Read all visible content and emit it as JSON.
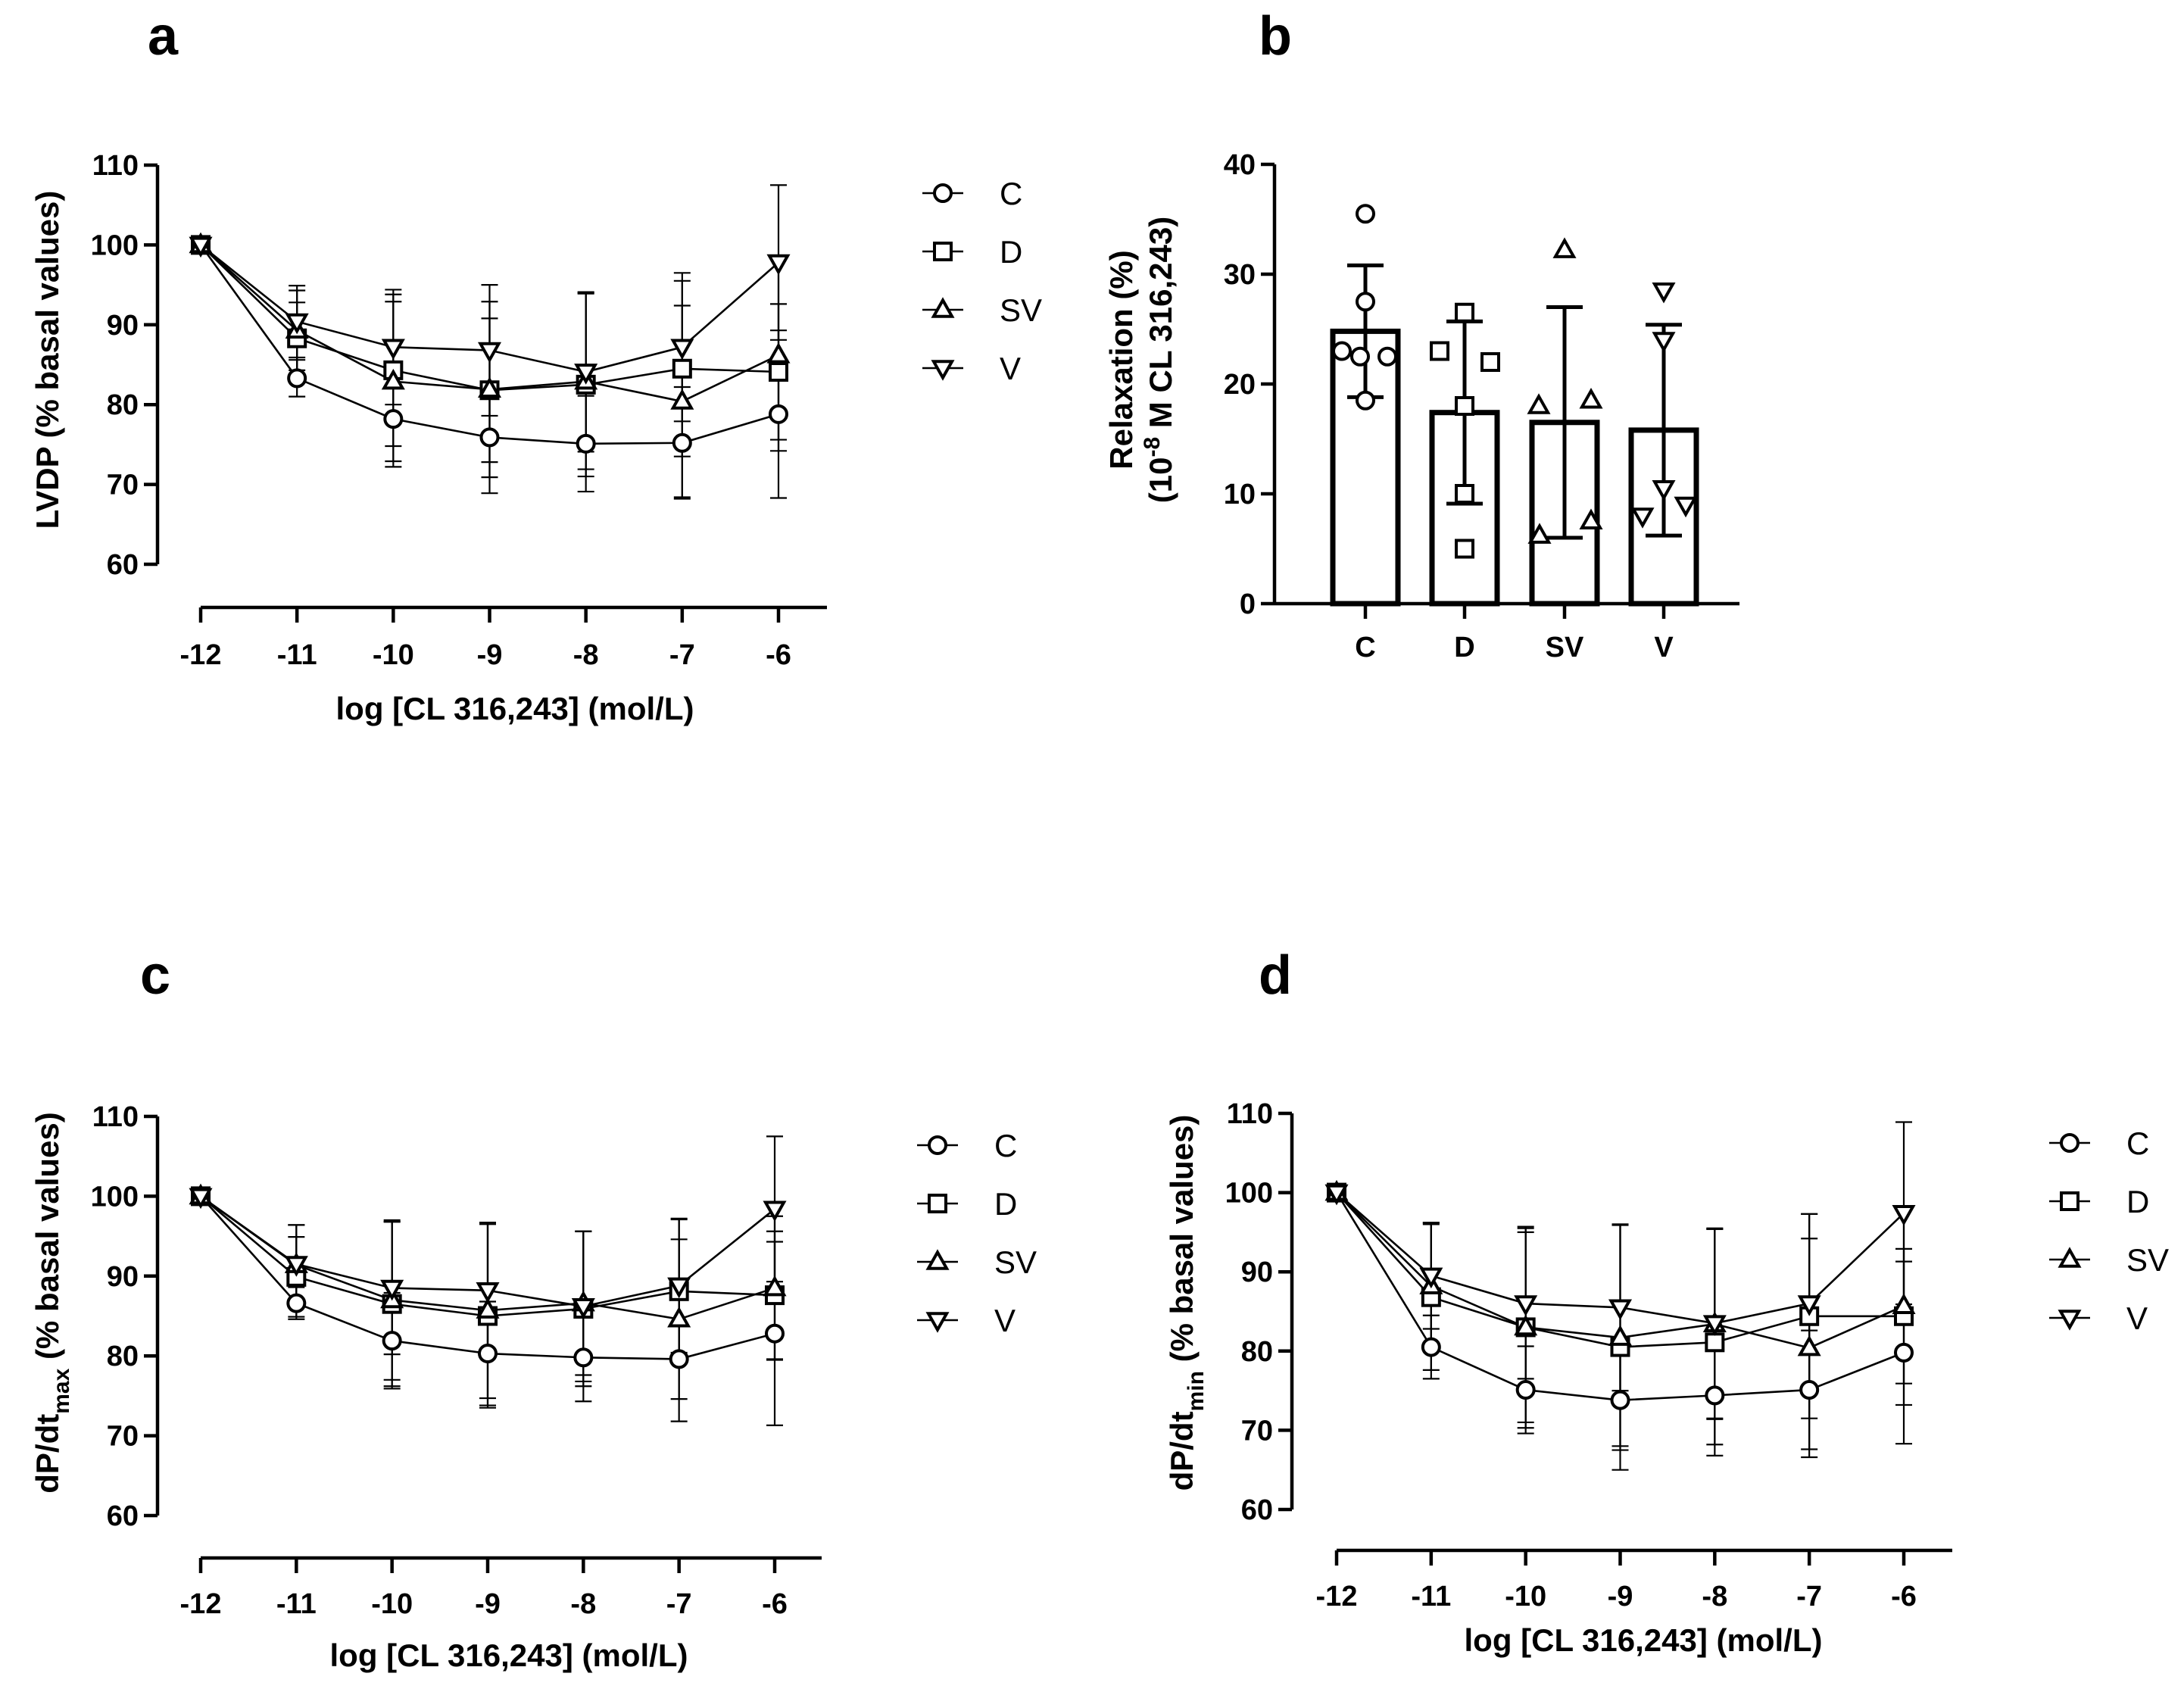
{
  "figure": {
    "panels": [
      "a",
      "b",
      "c",
      "d"
    ]
  },
  "chart_data": [
    {
      "panel": "a",
      "type": "line",
      "title": "",
      "xlabel": "log [CL 316,243] (mol/L)",
      "ylabel": "LVDP (% basal values)",
      "x": [
        -12,
        -11,
        -10,
        -9,
        -8,
        -7,
        -6
      ],
      "x_tick_labels": [
        "-12",
        "-11",
        "-10",
        "-9",
        "-8",
        "-7",
        "-6"
      ],
      "ylim": [
        60,
        110
      ],
      "y_ticks": [
        60,
        70,
        80,
        90,
        100,
        110
      ],
      "legend_position": "right",
      "series": [
        {
          "name": "C",
          "marker": "circle",
          "values": [
            100,
            83.3,
            78.2,
            75.9,
            75.1,
            75.2,
            78.8
          ],
          "err": [
            0,
            2.3,
            6,
            7,
            6,
            7,
            10.5
          ]
        },
        {
          "name": "D",
          "marker": "square",
          "values": [
            100,
            88.3,
            84.3,
            81.8,
            82.5,
            84.5,
            84.1
          ],
          "err": [
            0,
            4.5,
            9.5,
            9,
            11.5,
            11,
            8.5
          ]
        },
        {
          "name": "SV",
          "marker": "triangle-up",
          "values": [
            100,
            89.3,
            82.9,
            81.9,
            82.9,
            80.4,
            86.2
          ],
          "err": [
            0,
            5,
            10,
            11,
            11,
            12,
            12
          ]
        },
        {
          "name": "V",
          "marker": "triangle-down",
          "values": [
            100,
            90.4,
            87.2,
            86.8,
            84.1,
            87.2,
            97.8
          ],
          "err": [
            0,
            4.5,
            7.2,
            8.2,
            10,
            9.3,
            9.7
          ]
        }
      ]
    },
    {
      "panel": "b",
      "type": "bar",
      "title": "",
      "xlabel": "",
      "ylabel": "Relaxation (%)",
      "ylabel_line2": {
        "prefix": "(10",
        "superscript": "-8",
        "suffix": " M CL 316,243)"
      },
      "categories": [
        "C",
        "D",
        "SV",
        "V"
      ],
      "values": [
        24.8,
        17.4,
        16.5,
        15.8
      ],
      "err": [
        6,
        8.3,
        10.5,
        9.6
      ],
      "ylim": [
        0,
        40
      ],
      "y_ticks": [
        0,
        10,
        20,
        30,
        40
      ],
      "points": {
        "C": [
          35.5,
          27.5,
          23,
          22.5,
          22.5,
          18.5
        ],
        "D": [
          26.5,
          23,
          22,
          18,
          10,
          5
        ],
        "SV": [
          32.2,
          18,
          18.5,
          7.5,
          6.2
        ],
        "V": [
          28.5,
          24,
          10.5,
          9,
          8
        ]
      }
    },
    {
      "panel": "c",
      "type": "line",
      "title": "",
      "xlabel": "log [CL 316,243] (mol/L)",
      "ylabel": {
        "prefix": "dP/dt",
        "subscript": "max",
        "suffix": " (% basal values)"
      },
      "x": [
        -12,
        -11,
        -10,
        -9,
        -8,
        -7,
        -6
      ],
      "x_tick_labels": [
        "-12",
        "-11",
        "-10",
        "-9",
        "-8",
        "-7",
        "-6"
      ],
      "ylim": [
        60,
        110
      ],
      "y_ticks": [
        60,
        70,
        80,
        90,
        100,
        110
      ],
      "legend_position": "right",
      "series": [
        {
          "name": "C",
          "marker": "circle",
          "values": [
            100,
            86.6,
            81.9,
            80.3,
            79.8,
            79.6,
            82.8
          ],
          "err": [
            0,
            2,
            6,
            6.5,
            5.5,
            7.8,
            11.5
          ]
        },
        {
          "name": "D",
          "marker": "square",
          "values": [
            100,
            89.9,
            86.5,
            85,
            85.9,
            88.1,
            87.6
          ],
          "err": [
            0,
            5,
            10.3,
            11.5,
            9.7,
            9,
            8
          ]
        },
        {
          "name": "SV",
          "marker": "triangle-up",
          "values": [
            100,
            91.4,
            87,
            85.7,
            86.6,
            84.6,
            88.5
          ],
          "err": [
            0,
            5,
            10,
            11,
            9,
            10,
            9
          ]
        },
        {
          "name": "V",
          "marker": "triangle-down",
          "values": [
            100,
            91.5,
            88.5,
            88.2,
            86.2,
            88.8,
            98.4
          ],
          "err": [
            0,
            4.9,
            8.3,
            8.5,
            9.4,
            8.4,
            9.1
          ]
        }
      ]
    },
    {
      "panel": "d",
      "type": "line",
      "title": "",
      "xlabel": "log [CL 316,243] (mol/L)",
      "ylabel": {
        "prefix": "dP/dt",
        "subscript": "min",
        "suffix": " (% basal values)"
      },
      "x": [
        -12,
        -11,
        -10,
        -9,
        -8,
        -7,
        -6
      ],
      "x_tick_labels": [
        "-12",
        "-11",
        "-10",
        "-9",
        "-8",
        "-7",
        "-6"
      ],
      "ylim": [
        60,
        110
      ],
      "y_ticks": [
        60,
        70,
        80,
        90,
        100,
        110
      ],
      "legend_position": "right",
      "series": [
        {
          "name": "C",
          "marker": "circle",
          "values": [
            100,
            80.5,
            75.1,
            73.8,
            74.4,
            75.1,
            79.8
          ],
          "err": [
            0,
            4,
            5.5,
            5.8,
            6.2,
            7.5,
            11.5
          ]
        },
        {
          "name": "D",
          "marker": "square",
          "values": [
            100,
            86.8,
            83,
            80.5,
            81.1,
            84.4,
            84.4
          ],
          "err": [
            0,
            9.2,
            12.7,
            15.5,
            14.3,
            12.9,
            8.5
          ]
        },
        {
          "name": "SV",
          "marker": "triangle-up",
          "values": [
            100,
            88.2,
            83,
            81.7,
            83.4,
            80.4,
            85.7
          ],
          "err": [
            0,
            8,
            12,
            14.2,
            12,
            13.8,
            12.5
          ]
        },
        {
          "name": "V",
          "marker": "triangle-down",
          "values": [
            100,
            89.5,
            86,
            85.5,
            83.5,
            86,
            97.4
          ],
          "err": [
            0,
            6.7,
            9.5,
            10.5,
            12,
            11.3,
            11.5
          ]
        }
      ]
    }
  ]
}
